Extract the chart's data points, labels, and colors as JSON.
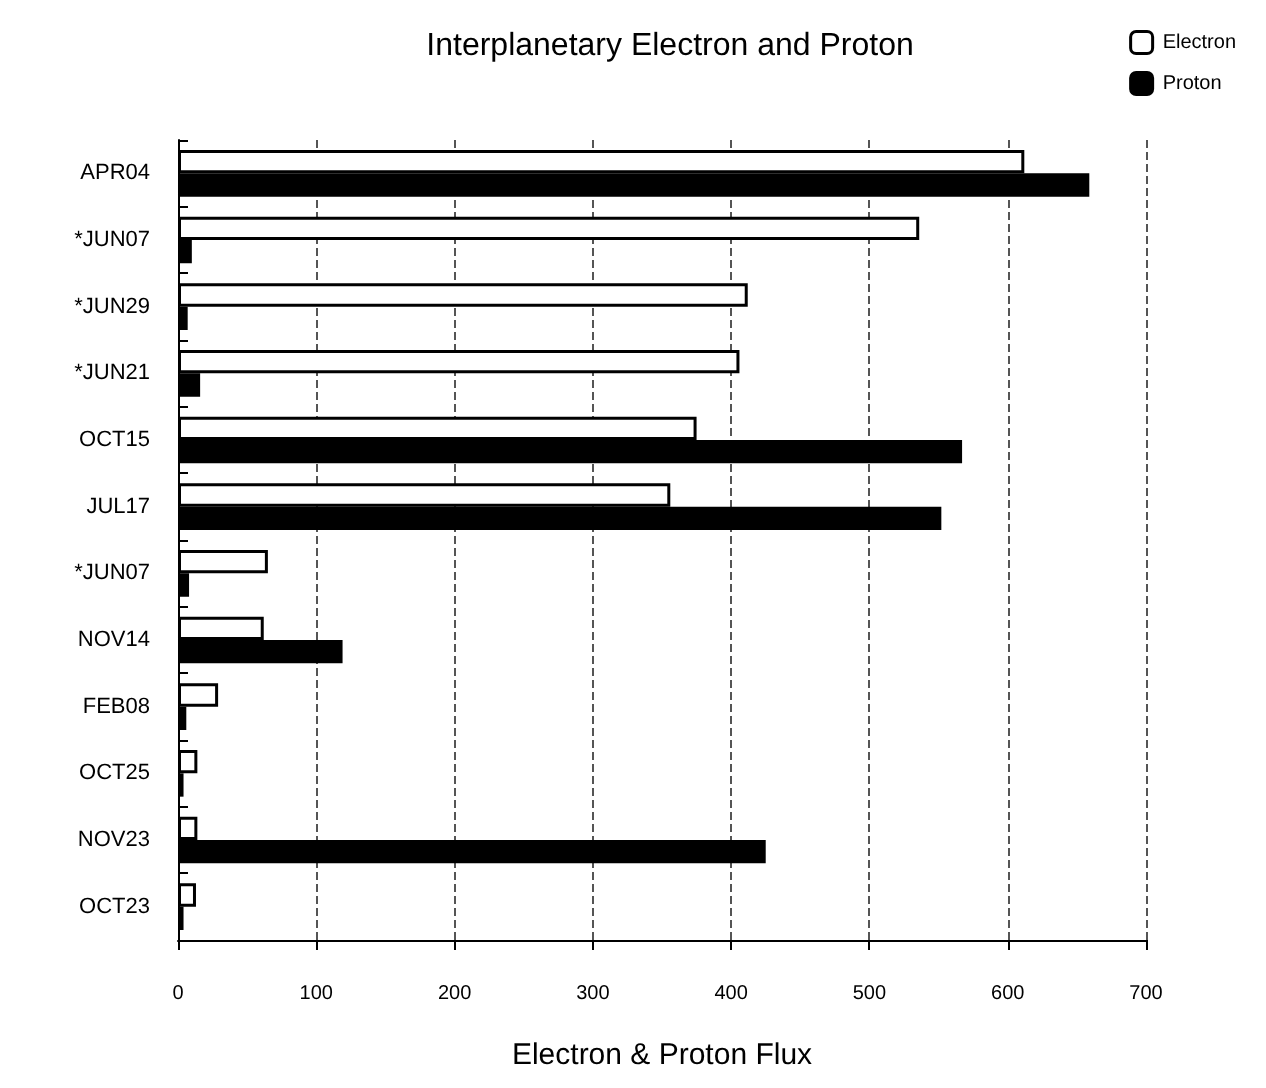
{
  "chart_data": {
    "type": "bar",
    "orientation": "horizontal",
    "title": "Interplanetary Electron and Proton",
    "xlabel": "Electron & Proton Flux",
    "categories": [
      "APR04",
      "*JUN07",
      "*JUN29",
      "*JUN21",
      "OCT15",
      "JUL17",
      "*JUN07",
      "NOV14",
      "FEB08",
      "OCT25",
      "NOV23",
      "OCT23"
    ],
    "series": [
      {
        "name": "Electron",
        "color": "#ffffff",
        "values": [
          612,
          536,
          412,
          406,
          375,
          356,
          65,
          62,
          29,
          14,
          14,
          13
        ]
      },
      {
        "name": "Proton",
        "color": "#000000",
        "values": [
          659,
          10,
          7,
          16,
          567,
          552,
          8,
          119,
          6,
          4,
          425,
          4
        ]
      }
    ],
    "xlim": [
      0,
      700
    ],
    "xticks": [
      0,
      100,
      200,
      300,
      400,
      500,
      600,
      700
    ],
    "grid": "x",
    "legend": "top right"
  }
}
